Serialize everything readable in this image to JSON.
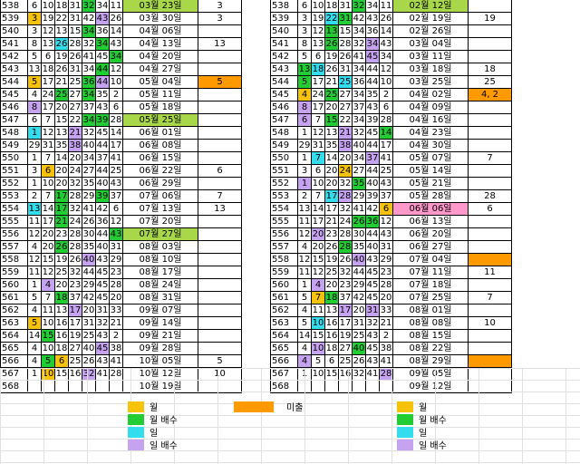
{
  "colors": {
    "orange": "#f7a30a",
    "green": "#33cc33",
    "lime": "#99dd33",
    "cyan": "#33ccee",
    "violet": "#b399ee",
    "pink": "#ff99cc",
    "miss": "#ff9900"
  },
  "left_rows": [
    {
      "id": "538",
      "n": [
        "6",
        "10",
        "18",
        "31",
        "32",
        "34",
        "11"
      ],
      "date": "03월 23일",
      "flag": "3",
      "extra": ""
    },
    {
      "id": "539",
      "n": [
        "3",
        "19",
        "22",
        "31",
        "42",
        "43",
        "26"
      ],
      "date": "03월 30일",
      "flag": "3",
      "extra": ""
    },
    {
      "id": "540",
      "n": [
        "3",
        "12",
        "13",
        "15",
        "34",
        "36",
        "14"
      ],
      "date": "04월 06일",
      "flag": "",
      "extra": ""
    },
    {
      "id": "541",
      "n": [
        "8",
        "13",
        "26",
        "28",
        "32",
        "34",
        "43"
      ],
      "date": "04월 13일",
      "flag": "13",
      "extra": ""
    },
    {
      "id": "542",
      "n": [
        "5",
        "6",
        "19",
        "26",
        "41",
        "45",
        "34"
      ],
      "date": "04월 20일",
      "flag": "",
      "extra": ""
    },
    {
      "id": "543",
      "n": [
        "13",
        "18",
        "26",
        "31",
        "34",
        "44",
        "12"
      ],
      "date": "04월 27일",
      "flag": "",
      "extra": ""
    },
    {
      "id": "544",
      "n": [
        "5",
        "17",
        "21",
        "25",
        "36",
        "44",
        "10"
      ],
      "date": "05월 04일",
      "flag": "5",
      "extra": ""
    },
    {
      "id": "545",
      "n": [
        "4",
        "24",
        "25",
        "27",
        "34",
        "35",
        "2"
      ],
      "date": "05월 11일",
      "flag": "",
      "extra": ""
    },
    {
      "id": "546",
      "n": [
        "8",
        "17",
        "20",
        "27",
        "37",
        "43",
        "6"
      ],
      "date": "05월 18일",
      "flag": "",
      "extra": ""
    },
    {
      "id": "547",
      "n": [
        "6",
        "7",
        "15",
        "22",
        "34",
        "39",
        "28"
      ],
      "date": "05월 25일",
      "flag": "",
      "extra": ""
    },
    {
      "id": "548",
      "n": [
        "1",
        "12",
        "13",
        "21",
        "32",
        "45",
        "14"
      ],
      "date": "06월 01일",
      "flag": "",
      "extra": ""
    },
    {
      "id": "549",
      "n": [
        "29",
        "31",
        "35",
        "38",
        "40",
        "44",
        "17"
      ],
      "date": "06월 08일",
      "flag": "",
      "extra": ""
    },
    {
      "id": "550",
      "n": [
        "1",
        "7",
        "14",
        "20",
        "34",
        "37",
        "41"
      ],
      "date": "06월 15일",
      "flag": "",
      "extra": ""
    },
    {
      "id": "551",
      "n": [
        "3",
        "6",
        "20",
        "24",
        "27",
        "44",
        "25"
      ],
      "date": "06월 22일",
      "flag": "6",
      "extra": ""
    },
    {
      "id": "552",
      "n": [
        "1",
        "10",
        "20",
        "32",
        "35",
        "40",
        "43"
      ],
      "date": "06월 29일",
      "flag": "",
      "extra": ""
    },
    {
      "id": "553",
      "n": [
        "2",
        "7",
        "17",
        "28",
        "29",
        "39",
        "37"
      ],
      "date": "07월 06일",
      "flag": "7",
      "extra": ""
    },
    {
      "id": "554",
      "n": [
        "13",
        "14",
        "17",
        "32",
        "41",
        "42",
        "6"
      ],
      "date": "07월 13일",
      "flag": "13",
      "extra": ""
    },
    {
      "id": "555",
      "n": [
        "11",
        "17",
        "21",
        "24",
        "26",
        "36",
        "12"
      ],
      "date": "07월 20일",
      "flag": "",
      "extra": ""
    },
    {
      "id": "556",
      "n": [
        "12",
        "20",
        "23",
        "28",
        "30",
        "44",
        "43"
      ],
      "date": "07월 27일",
      "flag": "",
      "extra": ""
    },
    {
      "id": "557",
      "n": [
        "4",
        "20",
        "26",
        "28",
        "35",
        "40",
        "31"
      ],
      "date": "08월 03일",
      "flag": "",
      "extra": ""
    },
    {
      "id": "558",
      "n": [
        "12",
        "15",
        "19",
        "26",
        "40",
        "43",
        "29"
      ],
      "date": "08월 10일",
      "flag": "",
      "extra": ""
    },
    {
      "id": "559",
      "n": [
        "11",
        "12",
        "25",
        "32",
        "44",
        "45",
        "23"
      ],
      "date": "08월 17일",
      "flag": "",
      "extra": ""
    },
    {
      "id": "560",
      "n": [
        "1",
        "4",
        "20",
        "23",
        "29",
        "45",
        "28"
      ],
      "date": "08월 24일",
      "flag": "",
      "extra": ""
    },
    {
      "id": "561",
      "n": [
        "5",
        "7",
        "18",
        "37",
        "42",
        "45",
        "20"
      ],
      "date": "08월 31일",
      "flag": "",
      "extra": ""
    },
    {
      "id": "562",
      "n": [
        "4",
        "11",
        "13",
        "17",
        "20",
        "31",
        "33"
      ],
      "date": "09월 07일",
      "flag": "",
      "extra": ""
    },
    {
      "id": "563",
      "n": [
        "5",
        "10",
        "16",
        "17",
        "31",
        "32",
        "21"
      ],
      "date": "09월 14일",
      "flag": "",
      "extra": ""
    },
    {
      "id": "564",
      "n": [
        "14",
        "15",
        "16",
        "19",
        "25",
        "43",
        "2"
      ],
      "date": "09월 21일",
      "flag": "",
      "extra": ""
    },
    {
      "id": "565",
      "n": [
        "4",
        "10",
        "18",
        "27",
        "40",
        "45",
        "38"
      ],
      "date": "09월 28일",
      "flag": "",
      "extra": ""
    },
    {
      "id": "566",
      "n": [
        "4",
        "5",
        "6",
        "25",
        "26",
        "43",
        "41"
      ],
      "date": "10월 05일",
      "flag": "5",
      "extra": ""
    },
    {
      "id": "567",
      "n": [
        "1",
        "10",
        "15",
        "16",
        "32",
        "41",
        "28"
      ],
      "date": "10월 12일",
      "flag": "10",
      "extra": ""
    },
    {
      "id": "568",
      "n": [
        "",
        "",
        "",
        "",
        "",
        "",
        ""
      ],
      "date": "10월 19일",
      "flag": "",
      "extra": ""
    }
  ],
  "right_rows": [
    {
      "id": "538",
      "n": [
        "6",
        "10",
        "18",
        "31",
        "32",
        "34",
        "11"
      ],
      "date": "02월 12일",
      "flag": "",
      "extra": ""
    },
    {
      "id": "539",
      "n": [
        "3",
        "19",
        "22",
        "31",
        "42",
        "43",
        "26"
      ],
      "date": "02월 19일",
      "flag": "19",
      "extra": ""
    },
    {
      "id": "540",
      "n": [
        "3",
        "12",
        "13",
        "15",
        "34",
        "36",
        "14"
      ],
      "date": "02월 26일",
      "flag": "",
      "extra": ""
    },
    {
      "id": "541",
      "n": [
        "8",
        "13",
        "26",
        "28",
        "32",
        "34",
        "43"
      ],
      "date": "03월 04일",
      "flag": "",
      "extra": ""
    },
    {
      "id": "542",
      "n": [
        "5",
        "6",
        "19",
        "26",
        "41",
        "45",
        "34"
      ],
      "date": "03월 11일",
      "flag": "",
      "extra": ""
    },
    {
      "id": "543",
      "n": [
        "13",
        "18",
        "26",
        "31",
        "34",
        "44",
        "12"
      ],
      "date": "03월 18일",
      "flag": "18",
      "extra": ""
    },
    {
      "id": "544",
      "n": [
        "5",
        "17",
        "21",
        "25",
        "36",
        "44",
        "10"
      ],
      "date": "03월 25일",
      "flag": "25",
      "extra": ""
    },
    {
      "id": "545",
      "n": [
        "4",
        "24",
        "25",
        "27",
        "34",
        "35",
        "2"
      ],
      "date": "04월 02일",
      "flag": "4, 2",
      "extra": ""
    },
    {
      "id": "546",
      "n": [
        "8",
        "17",
        "20",
        "27",
        "37",
        "43",
        "6"
      ],
      "date": "04월 09일",
      "flag": "",
      "extra": ""
    },
    {
      "id": "547",
      "n": [
        "6",
        "7",
        "15",
        "22",
        "34",
        "39",
        "28"
      ],
      "date": "04월 16일",
      "flag": "",
      "extra": ""
    },
    {
      "id": "548",
      "n": [
        "1",
        "12",
        "13",
        "21",
        "32",
        "45",
        "14"
      ],
      "date": "04월 23일",
      "flag": "",
      "extra": ""
    },
    {
      "id": "549",
      "n": [
        "29",
        "31",
        "35",
        "38",
        "40",
        "44",
        "17"
      ],
      "date": "04월 30일",
      "flag": "",
      "extra": ""
    },
    {
      "id": "550",
      "n": [
        "1",
        "7",
        "14",
        "20",
        "34",
        "37",
        "41"
      ],
      "date": "05월 07일",
      "flag": "7",
      "extra": ""
    },
    {
      "id": "551",
      "n": [
        "3",
        "6",
        "20",
        "24",
        "27",
        "44",
        "25"
      ],
      "date": "05월 14일",
      "flag": "",
      "extra": ""
    },
    {
      "id": "552",
      "n": [
        "1",
        "10",
        "20",
        "32",
        "35",
        "40",
        "43"
      ],
      "date": "05월 21일",
      "flag": "",
      "extra": ""
    },
    {
      "id": "553",
      "n": [
        "2",
        "7",
        "17",
        "28",
        "29",
        "39",
        "37"
      ],
      "date": "05월 28일",
      "flag": "28",
      "extra": ""
    },
    {
      "id": "554",
      "n": [
        "13",
        "14",
        "17",
        "32",
        "41",
        "42",
        "6"
      ],
      "date": "06월 06일",
      "flag": "6",
      "extra": ""
    },
    {
      "id": "555",
      "n": [
        "11",
        "17",
        "21",
        "24",
        "26",
        "36",
        "12"
      ],
      "date": "06월 13일",
      "flag": "",
      "extra": ""
    },
    {
      "id": "556",
      "n": [
        "12",
        "20",
        "23",
        "28",
        "30",
        "44",
        "43"
      ],
      "date": "06월 20일",
      "flag": "",
      "extra": ""
    },
    {
      "id": "557",
      "n": [
        "4",
        "20",
        "26",
        "28",
        "35",
        "40",
        "31"
      ],
      "date": "06월 27일",
      "flag": "",
      "extra": ""
    },
    {
      "id": "558",
      "n": [
        "12",
        "15",
        "19",
        "26",
        "40",
        "43",
        "29"
      ],
      "date": "07월 04일",
      "flag": "",
      "extra": ""
    },
    {
      "id": "559",
      "n": [
        "11",
        "12",
        "25",
        "32",
        "44",
        "45",
        "23"
      ],
      "date": "07월 11일",
      "flag": "11",
      "extra": ""
    },
    {
      "id": "560",
      "n": [
        "1",
        "4",
        "20",
        "23",
        "29",
        "45",
        "28"
      ],
      "date": "07월 18일",
      "flag": "",
      "extra": ""
    },
    {
      "id": "561",
      "n": [
        "5",
        "7",
        "18",
        "37",
        "42",
        "45",
        "20"
      ],
      "date": "07월 25일",
      "flag": "7",
      "extra": ""
    },
    {
      "id": "562",
      "n": [
        "4",
        "11",
        "13",
        "17",
        "20",
        "31",
        "33"
      ],
      "date": "08월 01일",
      "flag": "",
      "extra": ""
    },
    {
      "id": "563",
      "n": [
        "5",
        "10",
        "16",
        "17",
        "31",
        "32",
        "21"
      ],
      "date": "08월 08일",
      "flag": "10",
      "extra": ""
    },
    {
      "id": "564",
      "n": [
        "14",
        "15",
        "16",
        "19",
        "25",
        "43",
        "2"
      ],
      "date": "08월 15일",
      "flag": "",
      "extra": ""
    },
    {
      "id": "565",
      "n": [
        "4",
        "10",
        "18",
        "27",
        "40",
        "45",
        "38"
      ],
      "date": "08월 22일",
      "flag": "",
      "extra": ""
    },
    {
      "id": "566",
      "n": [
        "4",
        "5",
        "6",
        "25",
        "26",
        "43",
        "41"
      ],
      "date": "08월 29일",
      "flag": "",
      "extra": ""
    },
    {
      "id": "567",
      "n": [
        "1",
        "10",
        "15",
        "16",
        "32",
        "41",
        "28"
      ],
      "date": "09월 05일",
      "flag": "",
      "extra": ""
    },
    {
      "id": "568",
      "n": [
        "",
        "",
        "",
        "",
        "",
        "",
        ""
      ],
      "date": "09월 12일",
      "flag": "",
      "extra": ""
    }
  ],
  "legend": {
    "month": "월",
    "month_multiple": "월 배수",
    "day": "일",
    "day_multiple": "일 배수",
    "missed": "미출"
  }
}
